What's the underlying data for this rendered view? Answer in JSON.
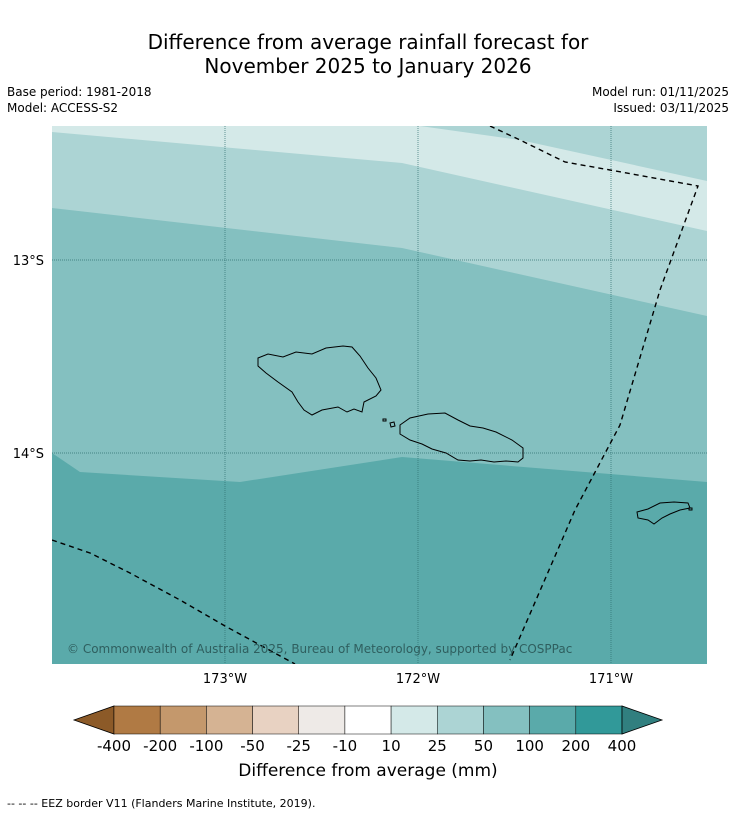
{
  "title_line1": "Difference from average rainfall forecast for",
  "title_line2": "November 2025 to January 2026",
  "base_period": "Base period: 1981-2018",
  "model": "Model: ACCESS-S2",
  "model_run": "Model run: 01/11/2025",
  "issued": "Issued: 03/11/2025",
  "copyright": "© Commonwealth of Australia 2025, Bureau of Meteorology, supported by COSPPac",
  "lat_labels": [
    "13°S",
    "14°S"
  ],
  "lon_labels": [
    "173°W",
    "172°W",
    "171°W"
  ],
  "colorbar": {
    "title": "Difference from average (mm)",
    "ticks": [
      "-400",
      "-200",
      "-100",
      "-50",
      "-25",
      "-10",
      "10",
      "25",
      "50",
      "100",
      "200",
      "400"
    ],
    "colors": [
      "#8c5a28",
      "#b07a44",
      "#c4986c",
      "#d5b393",
      "#e8d2c2",
      "#eeeae7",
      "#ffffff",
      "#d4e9e8",
      "#acd4d4",
      "#84c0c0",
      "#5aaaaa",
      "#319999",
      "#317f7f"
    ]
  },
  "footer": "--  --  -- EEZ border V11 (Flanders Marine Institute, 2019).",
  "fill_colors": {
    "band_10_25": "#d4e9e8",
    "band_25_50": "#acd4d4",
    "band_50_100": "#84c0c0",
    "band_100_200": "#5aaaaa"
  }
}
